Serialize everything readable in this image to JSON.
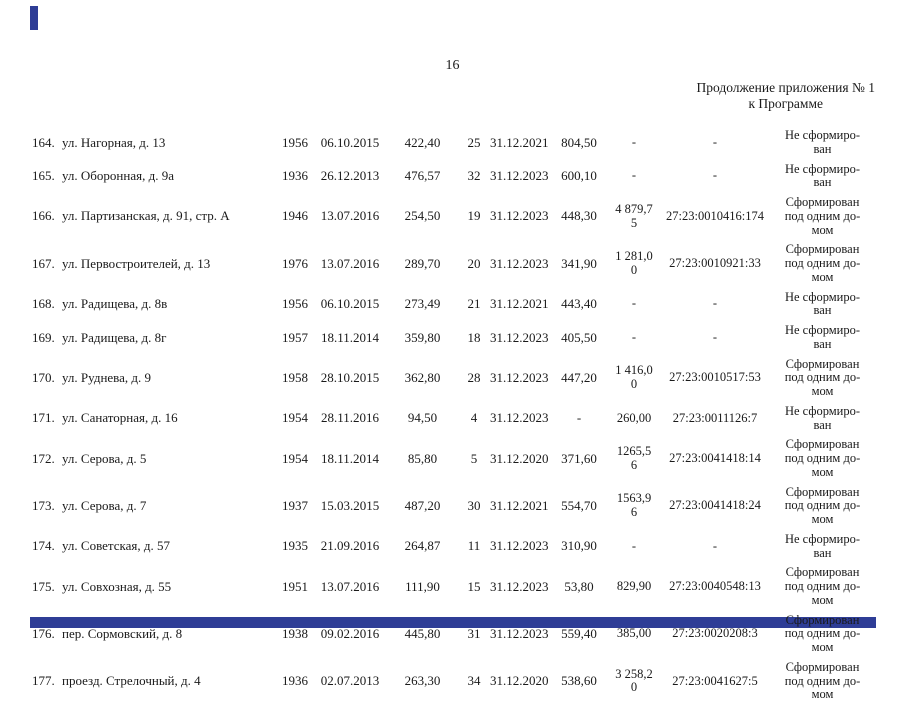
{
  "page": {
    "number": "16",
    "continuation_line1": "Продолжение приложения № 1",
    "continuation_line2": "к Программе"
  },
  "colors": {
    "page_edge": "#2e3d96"
  },
  "table": {
    "rows": [
      {
        "num": "164.",
        "address": "ул. Нагорная, д. 13",
        "year": "1956",
        "date1": "06.10.2015",
        "area": "422,40",
        "count": "25",
        "date2": "31.12.2021",
        "val1": "804,50",
        "val2": "-",
        "cadastral": "-",
        "status": "Не сформиро-\nван"
      },
      {
        "num": "165.",
        "address": "ул. Оборонная, д. 9а",
        "year": "1936",
        "date1": "26.12.2013",
        "area": "476,57",
        "count": "32",
        "date2": "31.12.2023",
        "val1": "600,10",
        "val2": "-",
        "cadastral": "-",
        "status": "Не сформиро-\nван"
      },
      {
        "num": "166.",
        "address": "ул. Партизанская, д. 91, стр. А",
        "year": "1946",
        "date1": "13.07.2016",
        "area": "254,50",
        "count": "19",
        "date2": "31.12.2023",
        "val1": "448,30",
        "val2": "4 879,7\n5",
        "cadastral": "27:23:0010416:174",
        "status": "Сформирован\nпод одним до-\nмом"
      },
      {
        "num": "167.",
        "address": "ул. Первостроителей, д. 13",
        "year": "1976",
        "date1": "13.07.2016",
        "area": "289,70",
        "count": "20",
        "date2": "31.12.2023",
        "val1": "341,90",
        "val2": "1 281,0\n0",
        "cadastral": "27:23:0010921:33",
        "status": "Сформирован\nпод одним до-\nмом"
      },
      {
        "num": "168.",
        "address": "ул. Радищева, д. 8в",
        "year": "1956",
        "date1": "06.10.2015",
        "area": "273,49",
        "count": "21",
        "date2": "31.12.2021",
        "val1": "443,40",
        "val2": "-",
        "cadastral": "-",
        "status": "Не сформиро-\nван"
      },
      {
        "num": "169.",
        "address": "ул. Радищева, д. 8г",
        "year": "1957",
        "date1": "18.11.2014",
        "area": "359,80",
        "count": "18",
        "date2": "31.12.2023",
        "val1": "405,50",
        "val2": "-",
        "cadastral": "-",
        "status": "Не сформиро-\nван"
      },
      {
        "num": "170.",
        "address": "ул. Руднева, д. 9",
        "year": "1958",
        "date1": "28.10.2015",
        "area": "362,80",
        "count": "28",
        "date2": "31.12.2023",
        "val1": "447,20",
        "val2": "1 416,0\n0",
        "cadastral": "27:23:0010517:53",
        "status": "Сформирован\nпод одним до-\nмом"
      },
      {
        "num": "171.",
        "address": "ул. Санаторная, д. 16",
        "year": "1954",
        "date1": "28.11.2016",
        "area": "94,50",
        "count": "4",
        "date2": "31.12.2023",
        "val1": "-",
        "val2": "260,00",
        "cadastral": "27:23:0011126:7",
        "status": "Не сформиро-\nван"
      },
      {
        "num": "172.",
        "address": "ул. Серова, д. 5",
        "year": "1954",
        "date1": "18.11.2014",
        "area": "85,80",
        "count": "5",
        "date2": "31.12.2020",
        "val1": "371,60",
        "val2": "1265,5\n6",
        "cadastral": "27:23:0041418:14",
        "status": "Сформирован\nпод одним до-\nмом"
      },
      {
        "num": "173.",
        "address": "ул. Серова, д. 7",
        "year": "1937",
        "date1": "15.03.2015",
        "area": "487,20",
        "count": "30",
        "date2": "31.12.2021",
        "val1": "554,70",
        "val2": "1563,9\n6",
        "cadastral": "27:23:0041418:24",
        "status": "Сформирован\nпод одним до-\nмом"
      },
      {
        "num": "174.",
        "address": "ул. Советская, д. 57",
        "year": "1935",
        "date1": "21.09.2016",
        "area": "264,87",
        "count": "11",
        "date2": "31.12.2023",
        "val1": "310,90",
        "val2": "-",
        "cadastral": "-",
        "status": "Не сформиро-\nван"
      },
      {
        "num": "175.",
        "address": "ул. Совхозная, д. 55",
        "year": "1951",
        "date1": "13.07.2016",
        "area": "111,90",
        "count": "15",
        "date2": "31.12.2023",
        "val1": "53,80",
        "val2": "829,90",
        "cadastral": "27:23:0040548:13",
        "status": "Сформирован\nпод одним до-\nмом"
      },
      {
        "num": "176.",
        "address": "пер. Сормовский, д. 8",
        "year": "1938",
        "date1": "09.02.2016",
        "area": "445,80",
        "count": "31",
        "date2": "31.12.2023",
        "val1": "559,40",
        "val2": "385,00",
        "cadastral": "27:23:0020208:3",
        "status": "Сформирован\nпод одним до-\nмом"
      },
      {
        "num": "177.",
        "address": "проезд. Стрелочный, д. 4",
        "year": "1936",
        "date1": "02.07.2013",
        "area": "263,30",
        "count": "34",
        "date2": "31.12.2020",
        "val1": "538,60",
        "val2": "3 258,2\n0",
        "cadastral": "27:23:0041627:5",
        "status": "Сформирован\nпод одним до-\nмом"
      }
    ]
  }
}
